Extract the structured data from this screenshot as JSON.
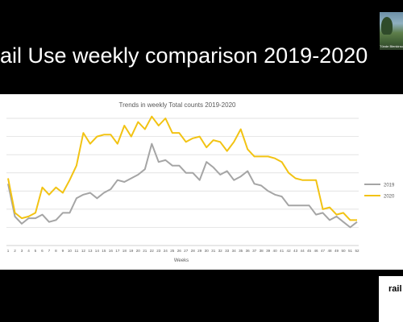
{
  "slide": {
    "title": "ail Use weekly comparison 2019-2020",
    "presenter_name": "Tünde Blenkinsop",
    "logo_text": "rail"
  },
  "chart_data": {
    "type": "line",
    "title": "Trends in weekly Total counts 2019-2020",
    "xlabel": "Weeks",
    "ylabel": "",
    "categories": [
      "1",
      "2",
      "3",
      "4",
      "5",
      "6",
      "7",
      "8",
      "9",
      "10",
      "11",
      "12",
      "13",
      "14",
      "15",
      "16",
      "17",
      "18",
      "19",
      "20",
      "21",
      "22",
      "23",
      "24",
      "25",
      "26",
      "27",
      "28",
      "29",
      "30",
      "31",
      "32",
      "33",
      "34",
      "35",
      "36",
      "37",
      "38",
      "39",
      "40",
      "41",
      "42",
      "43",
      "44",
      "45",
      "46",
      "47",
      "48",
      "49",
      "50",
      "51",
      "52"
    ],
    "ylim": [
      0,
      7
    ],
    "grid": true,
    "legend_position": "right",
    "series": [
      {
        "name": "2019",
        "color": "#a5a5a5",
        "values": [
          3.4,
          1.6,
          1.2,
          1.5,
          1.5,
          1.7,
          1.3,
          1.4,
          1.8,
          1.8,
          2.6,
          2.8,
          2.9,
          2.6,
          2.9,
          3.1,
          3.6,
          3.5,
          3.7,
          3.9,
          4.2,
          5.6,
          4.6,
          4.7,
          4.4,
          4.4,
          4.0,
          4.0,
          3.6,
          4.6,
          4.3,
          3.9,
          4.1,
          3.6,
          3.8,
          4.1,
          3.4,
          3.3,
          3.0,
          2.8,
          2.7,
          2.2,
          2.2,
          2.2,
          2.2,
          1.7,
          1.8,
          1.4,
          1.6,
          1.3,
          1.0,
          1.3
        ]
      },
      {
        "name": "2020",
        "color": "#f2c313",
        "values": [
          3.7,
          1.8,
          1.5,
          1.6,
          1.8,
          3.2,
          2.8,
          3.2,
          2.9,
          3.6,
          4.4,
          6.2,
          5.6,
          6.0,
          6.1,
          6.1,
          5.6,
          6.6,
          6.0,
          6.8,
          6.4,
          7.1,
          6.6,
          7.0,
          6.2,
          6.2,
          5.7,
          5.9,
          6.0,
          5.4,
          5.8,
          5.7,
          5.2,
          5.7,
          6.4,
          5.3,
          4.9,
          4.9,
          4.9,
          4.8,
          4.6,
          4.0,
          3.7,
          3.6,
          3.6,
          3.6,
          2.0,
          2.1,
          1.7,
          1.8,
          1.4,
          1.4
        ]
      }
    ]
  }
}
